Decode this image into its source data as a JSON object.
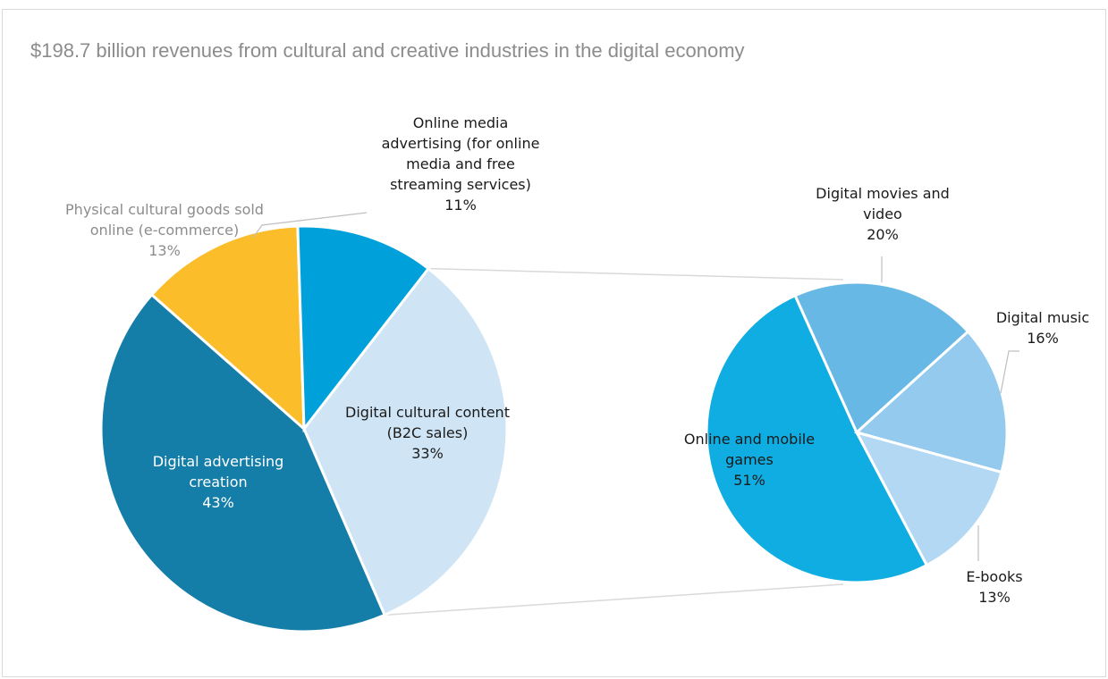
{
  "chart_data": {
    "type": "pie",
    "title": "$198.7 billion revenues from cultural and creative industries in the digital economy",
    "main_pie": {
      "slices": [
        {
          "label_lines": [
            "Digital advertising",
            "creation"
          ],
          "value_label": "43%",
          "value": 43,
          "color": "#157ea8",
          "text_color": "#ffffff"
        },
        {
          "label_lines": [
            "Physical cultural goods sold",
            "online (e-commerce)"
          ],
          "value_label": "13%",
          "value": 13,
          "color": "#fbbd2a",
          "text_color": "#8c8c8c"
        },
        {
          "label_lines": [
            "Online media",
            "advertising (for online",
            "media and free",
            "streaming services)"
          ],
          "value_label": "11%",
          "value": 11,
          "color": "#00a1da",
          "text_color": "#1a1a1a"
        },
        {
          "label_lines": [
            "Digital cultural content",
            "(B2C sales)"
          ],
          "value_label": "33%",
          "value": 33,
          "color": "#cfe5f5",
          "text_color": "#1a1a1a"
        }
      ]
    },
    "breakdown_pie": {
      "of": "Digital cultural content (B2C sales)",
      "slices": [
        {
          "label_lines": [
            "Online and mobile",
            "games"
          ],
          "value_label": "51%",
          "value": 51,
          "color": "#0fade2",
          "text_color": "#1a1a1a"
        },
        {
          "label_lines": [
            "Digital movies and",
            "video"
          ],
          "value_label": "20%",
          "value": 20,
          "color": "#68b8e6",
          "text_color": "#1a1a1a"
        },
        {
          "label_lines": [
            "Digital music"
          ],
          "value_label": "16%",
          "value": 16,
          "color": "#94caee",
          "text_color": "#1a1a1a"
        },
        {
          "label_lines": [
            "E-books"
          ],
          "value_label": "13%",
          "value": 13,
          "color": "#b3d8f3",
          "text_color": "#1a1a1a"
        }
      ]
    }
  }
}
